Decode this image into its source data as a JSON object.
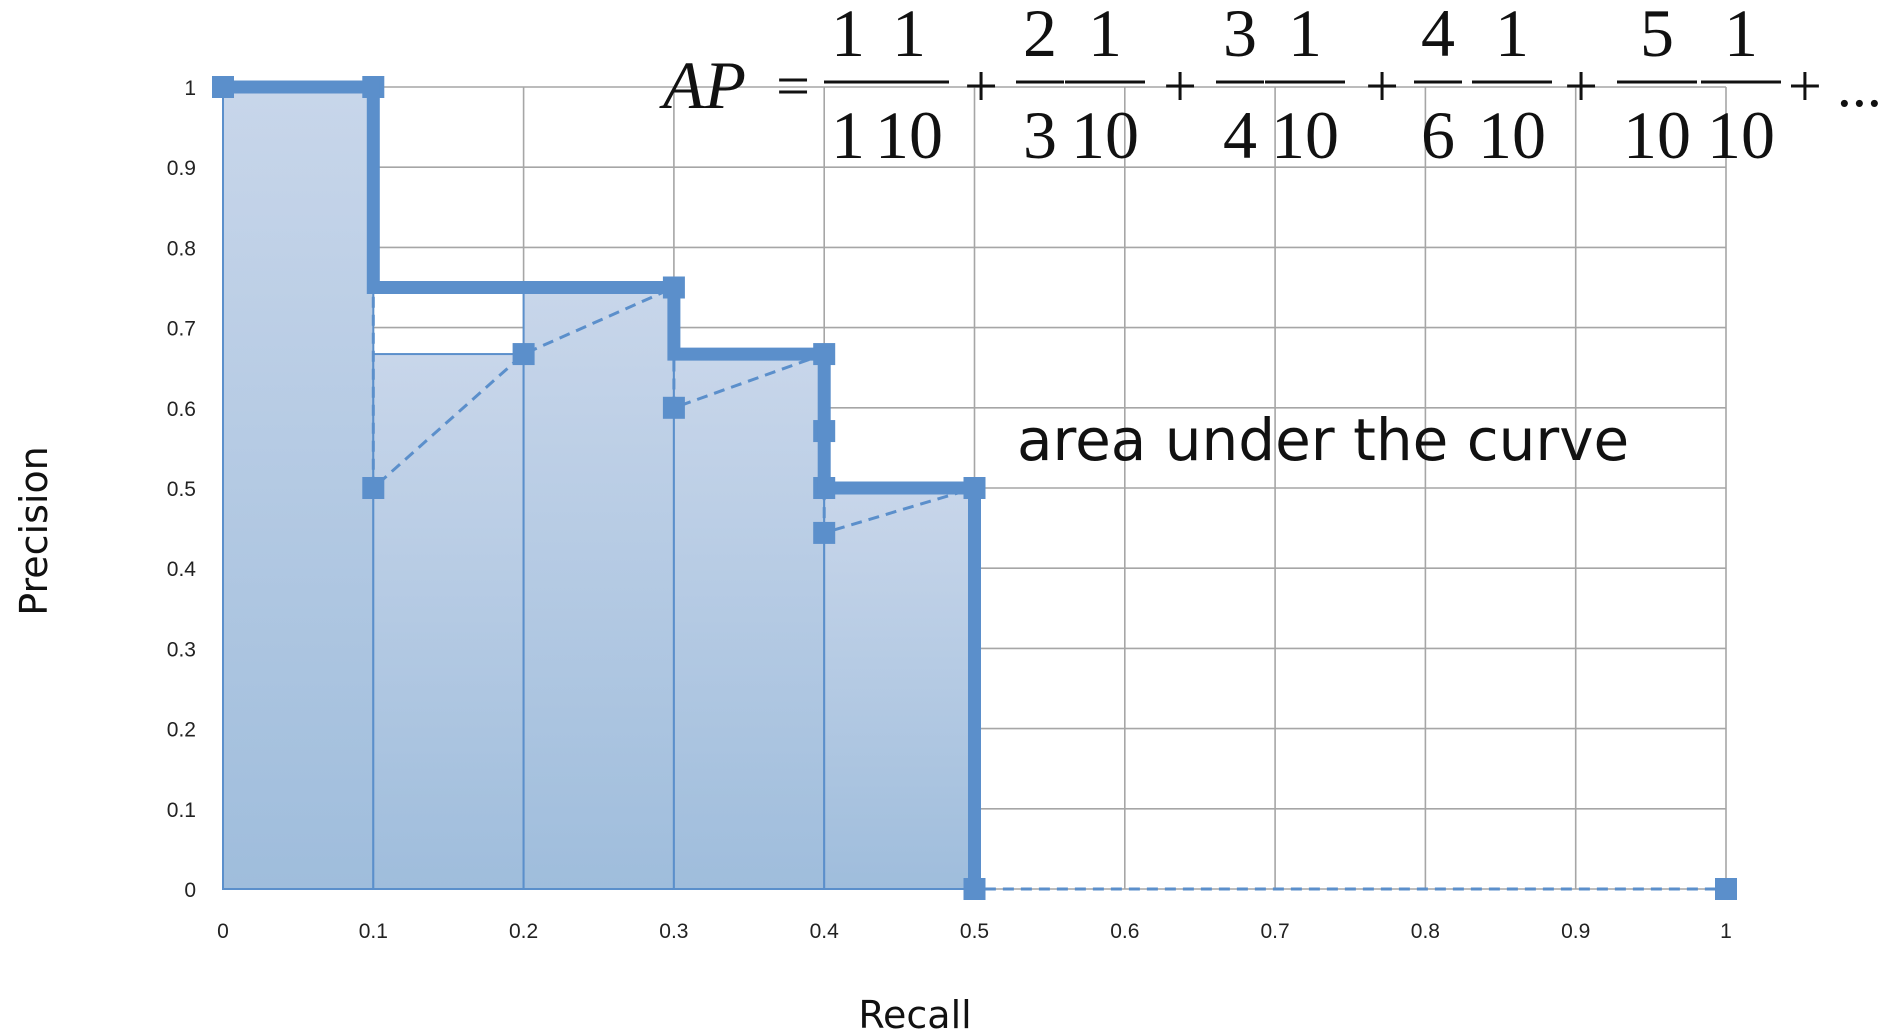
{
  "chart_data": {
    "type": "line",
    "xlabel": "Recall",
    "ylabel": "Precision",
    "xlim": [
      0,
      1
    ],
    "ylim": [
      0,
      1
    ],
    "x_ticks": [
      "0",
      "0.1",
      "0.2",
      "0.3",
      "0.4",
      "0.5",
      "0.6",
      "0.7",
      "0.8",
      "0.9",
      "1"
    ],
    "y_ticks": [
      "0",
      "0.1",
      "0.2",
      "0.3",
      "0.4",
      "0.5",
      "0.6",
      "0.7",
      "0.8",
      "0.9",
      "1"
    ],
    "grid": true,
    "colors": {
      "line": "#5b8fcb",
      "fill_top": "#c8d6ea",
      "fill_bottom": "#9fbddc",
      "grid": "#a6a6a6"
    },
    "series": [
      {
        "style": "dashed-with-square-markers",
        "points": [
          [
            0,
            1
          ],
          [
            0.1,
            1
          ],
          [
            0.1,
            0.5
          ],
          [
            0.2,
            0.667
          ],
          [
            0.3,
            0.75
          ],
          [
            0.3,
            0.6
          ],
          [
            0.4,
            0.667
          ],
          [
            0.4,
            0.571
          ],
          [
            0.4,
            0.5
          ],
          [
            0.4,
            0.444
          ],
          [
            0.5,
            0.5
          ],
          [
            0.5,
            0
          ],
          [
            1,
            0
          ]
        ]
      },
      {
        "style": "thick-step-envelope",
        "points": [
          [
            0,
            1
          ],
          [
            0.1,
            1
          ],
          [
            0.1,
            0.75
          ],
          [
            0.3,
            0.75
          ],
          [
            0.3,
            0.667
          ],
          [
            0.4,
            0.667
          ],
          [
            0.4,
            0.5
          ],
          [
            0.5,
            0.5
          ],
          [
            0.5,
            0
          ]
        ]
      }
    ],
    "area_bars": [
      {
        "x0": 0,
        "x1": 0.1,
        "y": 1
      },
      {
        "x0": 0.1,
        "x1": 0.2,
        "y": 0.667
      },
      {
        "x0": 0.2,
        "x1": 0.3,
        "y": 0.75
      },
      {
        "x0": 0.3,
        "x1": 0.4,
        "y": 0.667
      },
      {
        "x0": 0.4,
        "x1": 0.5,
        "y": 0.5
      }
    ],
    "annotation": "area under the curve",
    "equation": {
      "lhs": "AP",
      "eq": "=",
      "terms": [
        {
          "a_num": "1",
          "a_den": "1",
          "b_num": "1",
          "b_den": "10"
        },
        {
          "a_num": "2",
          "a_den": "3",
          "b_num": "1",
          "b_den": "10"
        },
        {
          "a_num": "3",
          "a_den": "4",
          "b_num": "1",
          "b_den": "10"
        },
        {
          "a_num": "4",
          "a_den": "6",
          "b_num": "1",
          "b_den": "10"
        },
        {
          "a_num": "5",
          "a_den": "10",
          "b_num": "1",
          "b_den": "10"
        }
      ],
      "plus": "+",
      "tail": "+ ..."
    }
  }
}
